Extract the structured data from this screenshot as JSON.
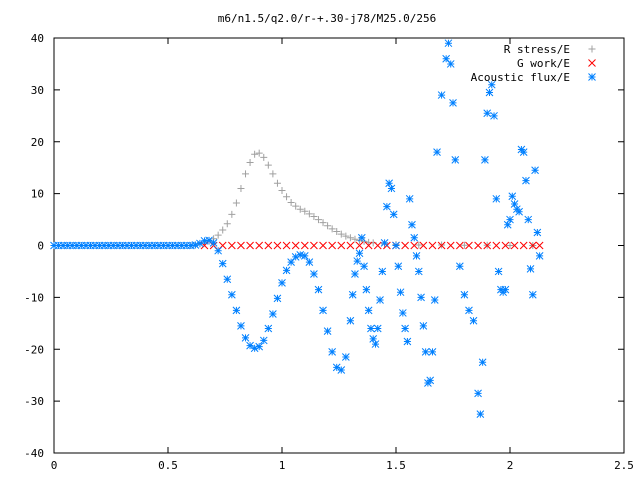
{
  "chart_data": {
    "type": "scatter",
    "title": "m6/n1.5/q2.0/r-+.30-j78/M25.0/256",
    "xlabel": "",
    "ylabel": "",
    "xlim": [
      0,
      2.5
    ],
    "ylim": [
      -40,
      40
    ],
    "x_ticks": [
      "0",
      "0.5",
      "1",
      "1.5",
      "2",
      "2.5"
    ],
    "y_ticks": [
      "40",
      "30",
      "20",
      "10",
      "0",
      "-10",
      "-20",
      "-30",
      "-40"
    ],
    "grid": false,
    "legend_position": "top-right",
    "series": [
      {
        "name": "R stress/E",
        "marker": "+",
        "color": "#a0a0a0",
        "points": [
          [
            0.6,
            0.0
          ],
          [
            0.62,
            0.1
          ],
          [
            0.64,
            0.3
          ],
          [
            0.66,
            0.5
          ],
          [
            0.68,
            0.8
          ],
          [
            0.7,
            1.3
          ],
          [
            0.72,
            2.0
          ],
          [
            0.74,
            3.0
          ],
          [
            0.76,
            4.2
          ],
          [
            0.78,
            6.0
          ],
          [
            0.8,
            8.2
          ],
          [
            0.82,
            11.0
          ],
          [
            0.84,
            13.8
          ],
          [
            0.86,
            16.0
          ],
          [
            0.88,
            17.6
          ],
          [
            0.9,
            17.8
          ],
          [
            0.92,
            17.0
          ],
          [
            0.94,
            15.5
          ],
          [
            0.96,
            13.8
          ],
          [
            0.98,
            12.0
          ],
          [
            1.0,
            10.6
          ],
          [
            1.02,
            9.4
          ],
          [
            1.04,
            8.3
          ],
          [
            1.06,
            7.6
          ],
          [
            1.08,
            7.0
          ],
          [
            1.1,
            6.6
          ],
          [
            1.12,
            6.1
          ],
          [
            1.14,
            5.6
          ],
          [
            1.16,
            5.0
          ],
          [
            1.18,
            4.4
          ],
          [
            1.2,
            3.8
          ],
          [
            1.22,
            3.2
          ],
          [
            1.24,
            2.7
          ],
          [
            1.26,
            2.2
          ],
          [
            1.28,
            1.8
          ],
          [
            1.3,
            1.5
          ],
          [
            1.32,
            1.2
          ],
          [
            1.34,
            1.0
          ],
          [
            1.36,
            0.8
          ],
          [
            1.38,
            0.6
          ],
          [
            1.4,
            0.5
          ],
          [
            1.45,
            0.3
          ],
          [
            1.5,
            0.2
          ],
          [
            1.6,
            0.1
          ],
          [
            1.7,
            0.1
          ],
          [
            1.8,
            0.05
          ],
          [
            1.9,
            0.05
          ],
          [
            2.0,
            0.0
          ],
          [
            2.1,
            0.0
          ]
        ]
      },
      {
        "name": "G work/E",
        "marker": "x",
        "color": "#ff0000",
        "points": [
          [
            0.66,
            0.0
          ],
          [
            0.7,
            0.0
          ],
          [
            0.74,
            0.0
          ],
          [
            0.78,
            0.0
          ],
          [
            0.82,
            0.0
          ],
          [
            0.86,
            0.0
          ],
          [
            0.9,
            0.0
          ],
          [
            0.94,
            0.0
          ],
          [
            0.98,
            0.0
          ],
          [
            1.02,
            0.0
          ],
          [
            1.06,
            0.0
          ],
          [
            1.1,
            0.0
          ],
          [
            1.14,
            0.0
          ],
          [
            1.18,
            0.0
          ],
          [
            1.22,
            0.0
          ],
          [
            1.26,
            0.0
          ],
          [
            1.3,
            0.0
          ],
          [
            1.34,
            0.0
          ],
          [
            1.38,
            0.0
          ],
          [
            1.42,
            0.0
          ],
          [
            1.46,
            0.0
          ],
          [
            1.5,
            0.0
          ],
          [
            1.54,
            0.0
          ],
          [
            1.58,
            0.0
          ],
          [
            1.62,
            0.0
          ],
          [
            1.66,
            0.0
          ],
          [
            1.7,
            0.0
          ],
          [
            1.74,
            0.0
          ],
          [
            1.78,
            0.0
          ],
          [
            1.82,
            0.0
          ],
          [
            1.86,
            0.0
          ],
          [
            1.9,
            0.0
          ],
          [
            1.94,
            0.0
          ],
          [
            1.98,
            0.0
          ],
          [
            2.02,
            0.0
          ],
          [
            2.06,
            0.0
          ],
          [
            2.1,
            0.0
          ],
          [
            2.13,
            0.0
          ]
        ]
      },
      {
        "name": "Acoustic flux/E",
        "marker": "*",
        "color": "#0080ff",
        "points": [
          [
            0.0,
            0.0
          ],
          [
            0.02,
            0.0
          ],
          [
            0.04,
            0.0
          ],
          [
            0.06,
            0.0
          ],
          [
            0.08,
            0.0
          ],
          [
            0.1,
            0.0
          ],
          [
            0.12,
            0.0
          ],
          [
            0.14,
            0.0
          ],
          [
            0.16,
            0.0
          ],
          [
            0.18,
            0.0
          ],
          [
            0.2,
            0.0
          ],
          [
            0.22,
            0.0
          ],
          [
            0.24,
            0.0
          ],
          [
            0.26,
            0.0
          ],
          [
            0.28,
            0.0
          ],
          [
            0.3,
            0.0
          ],
          [
            0.32,
            0.0
          ],
          [
            0.34,
            0.0
          ],
          [
            0.36,
            0.0
          ],
          [
            0.38,
            0.0
          ],
          [
            0.4,
            0.0
          ],
          [
            0.42,
            0.0
          ],
          [
            0.44,
            0.0
          ],
          [
            0.46,
            0.0
          ],
          [
            0.48,
            0.0
          ],
          [
            0.5,
            0.0
          ],
          [
            0.52,
            0.0
          ],
          [
            0.54,
            0.0
          ],
          [
            0.56,
            0.0
          ],
          [
            0.58,
            0.0
          ],
          [
            0.6,
            0.0
          ],
          [
            0.62,
            0.1
          ],
          [
            0.64,
            0.4
          ],
          [
            0.66,
            0.9
          ],
          [
            0.68,
            1.0
          ],
          [
            0.7,
            0.5
          ],
          [
            0.72,
            -1.0
          ],
          [
            0.74,
            -3.5
          ],
          [
            0.76,
            -6.5
          ],
          [
            0.78,
            -9.5
          ],
          [
            0.8,
            -12.5
          ],
          [
            0.82,
            -15.5
          ],
          [
            0.84,
            -17.8
          ],
          [
            0.86,
            -19.3
          ],
          [
            0.88,
            -19.8
          ],
          [
            0.9,
            -19.5
          ],
          [
            0.92,
            -18.3
          ],
          [
            0.94,
            -16.0
          ],
          [
            0.96,
            -13.2
          ],
          [
            0.98,
            -10.2
          ],
          [
            1.0,
            -7.2
          ],
          [
            1.02,
            -4.8
          ],
          [
            1.04,
            -3.2
          ],
          [
            1.06,
            -2.2
          ],
          [
            1.08,
            -1.8
          ],
          [
            1.1,
            -2.0
          ],
          [
            1.12,
            -3.2
          ],
          [
            1.14,
            -5.5
          ],
          [
            1.16,
            -8.5
          ],
          [
            1.18,
            -12.5
          ],
          [
            1.2,
            -16.5
          ],
          [
            1.22,
            -20.5
          ],
          [
            1.24,
            -23.5
          ],
          [
            1.26,
            -24.0
          ],
          [
            1.28,
            -21.5
          ],
          [
            1.3,
            -14.5
          ],
          [
            1.31,
            -9.5
          ],
          [
            1.32,
            -5.5
          ],
          [
            1.33,
            -3.0
          ],
          [
            1.34,
            -1.5
          ],
          [
            1.35,
            1.5
          ],
          [
            1.36,
            -4.0
          ],
          [
            1.37,
            -8.5
          ],
          [
            1.38,
            -12.5
          ],
          [
            1.39,
            -16.0
          ],
          [
            1.4,
            -18.0
          ],
          [
            1.41,
            -19.0
          ],
          [
            1.42,
            -16.0
          ],
          [
            1.43,
            -10.5
          ],
          [
            1.44,
            -5.0
          ],
          [
            1.45,
            0.5
          ],
          [
            1.46,
            7.5
          ],
          [
            1.47,
            12.0
          ],
          [
            1.48,
            11.0
          ],
          [
            1.49,
            6.0
          ],
          [
            1.5,
            0.0
          ],
          [
            1.51,
            -4.0
          ],
          [
            1.52,
            -9.0
          ],
          [
            1.53,
            -13.0
          ],
          [
            1.54,
            -16.0
          ],
          [
            1.55,
            -18.5
          ],
          [
            1.56,
            9.0
          ],
          [
            1.57,
            4.0
          ],
          [
            1.58,
            1.5
          ],
          [
            1.59,
            -2.0
          ],
          [
            1.6,
            -5.0
          ],
          [
            1.61,
            -10.0
          ],
          [
            1.62,
            -15.5
          ],
          [
            1.63,
            -20.5
          ],
          [
            1.64,
            -26.5
          ],
          [
            1.65,
            -26.0
          ],
          [
            1.66,
            -20.5
          ],
          [
            1.67,
            -10.5
          ],
          [
            1.68,
            18.0
          ],
          [
            1.7,
            29.0
          ],
          [
            1.72,
            36.0
          ],
          [
            1.73,
            39.0
          ],
          [
            1.74,
            35.0
          ],
          [
            1.75,
            27.5
          ],
          [
            1.76,
            16.5
          ],
          [
            1.78,
            -4.0
          ],
          [
            1.8,
            -9.5
          ],
          [
            1.82,
            -12.5
          ],
          [
            1.84,
            -14.5
          ],
          [
            1.86,
            -28.5
          ],
          [
            1.87,
            -32.5
          ],
          [
            1.88,
            -22.5
          ],
          [
            1.89,
            16.5
          ],
          [
            1.9,
            25.5
          ],
          [
            1.91,
            29.5
          ],
          [
            1.92,
            31.0
          ],
          [
            1.93,
            25.0
          ],
          [
            1.94,
            9.0
          ],
          [
            1.95,
            -5.0
          ],
          [
            1.96,
            -8.5
          ],
          [
            1.97,
            -9.0
          ],
          [
            1.98,
            -8.5
          ],
          [
            1.99,
            4.0
          ],
          [
            2.0,
            5.0
          ],
          [
            2.01,
            9.5
          ],
          [
            2.02,
            8.0
          ],
          [
            2.03,
            7.0
          ],
          [
            2.04,
            6.5
          ],
          [
            2.05,
            18.5
          ],
          [
            2.06,
            18.0
          ],
          [
            2.07,
            12.5
          ],
          [
            2.08,
            5.0
          ],
          [
            2.09,
            -4.5
          ],
          [
            2.1,
            -9.5
          ],
          [
            2.11,
            14.5
          ],
          [
            2.12,
            2.5
          ],
          [
            2.13,
            -2.0
          ]
        ]
      }
    ]
  }
}
